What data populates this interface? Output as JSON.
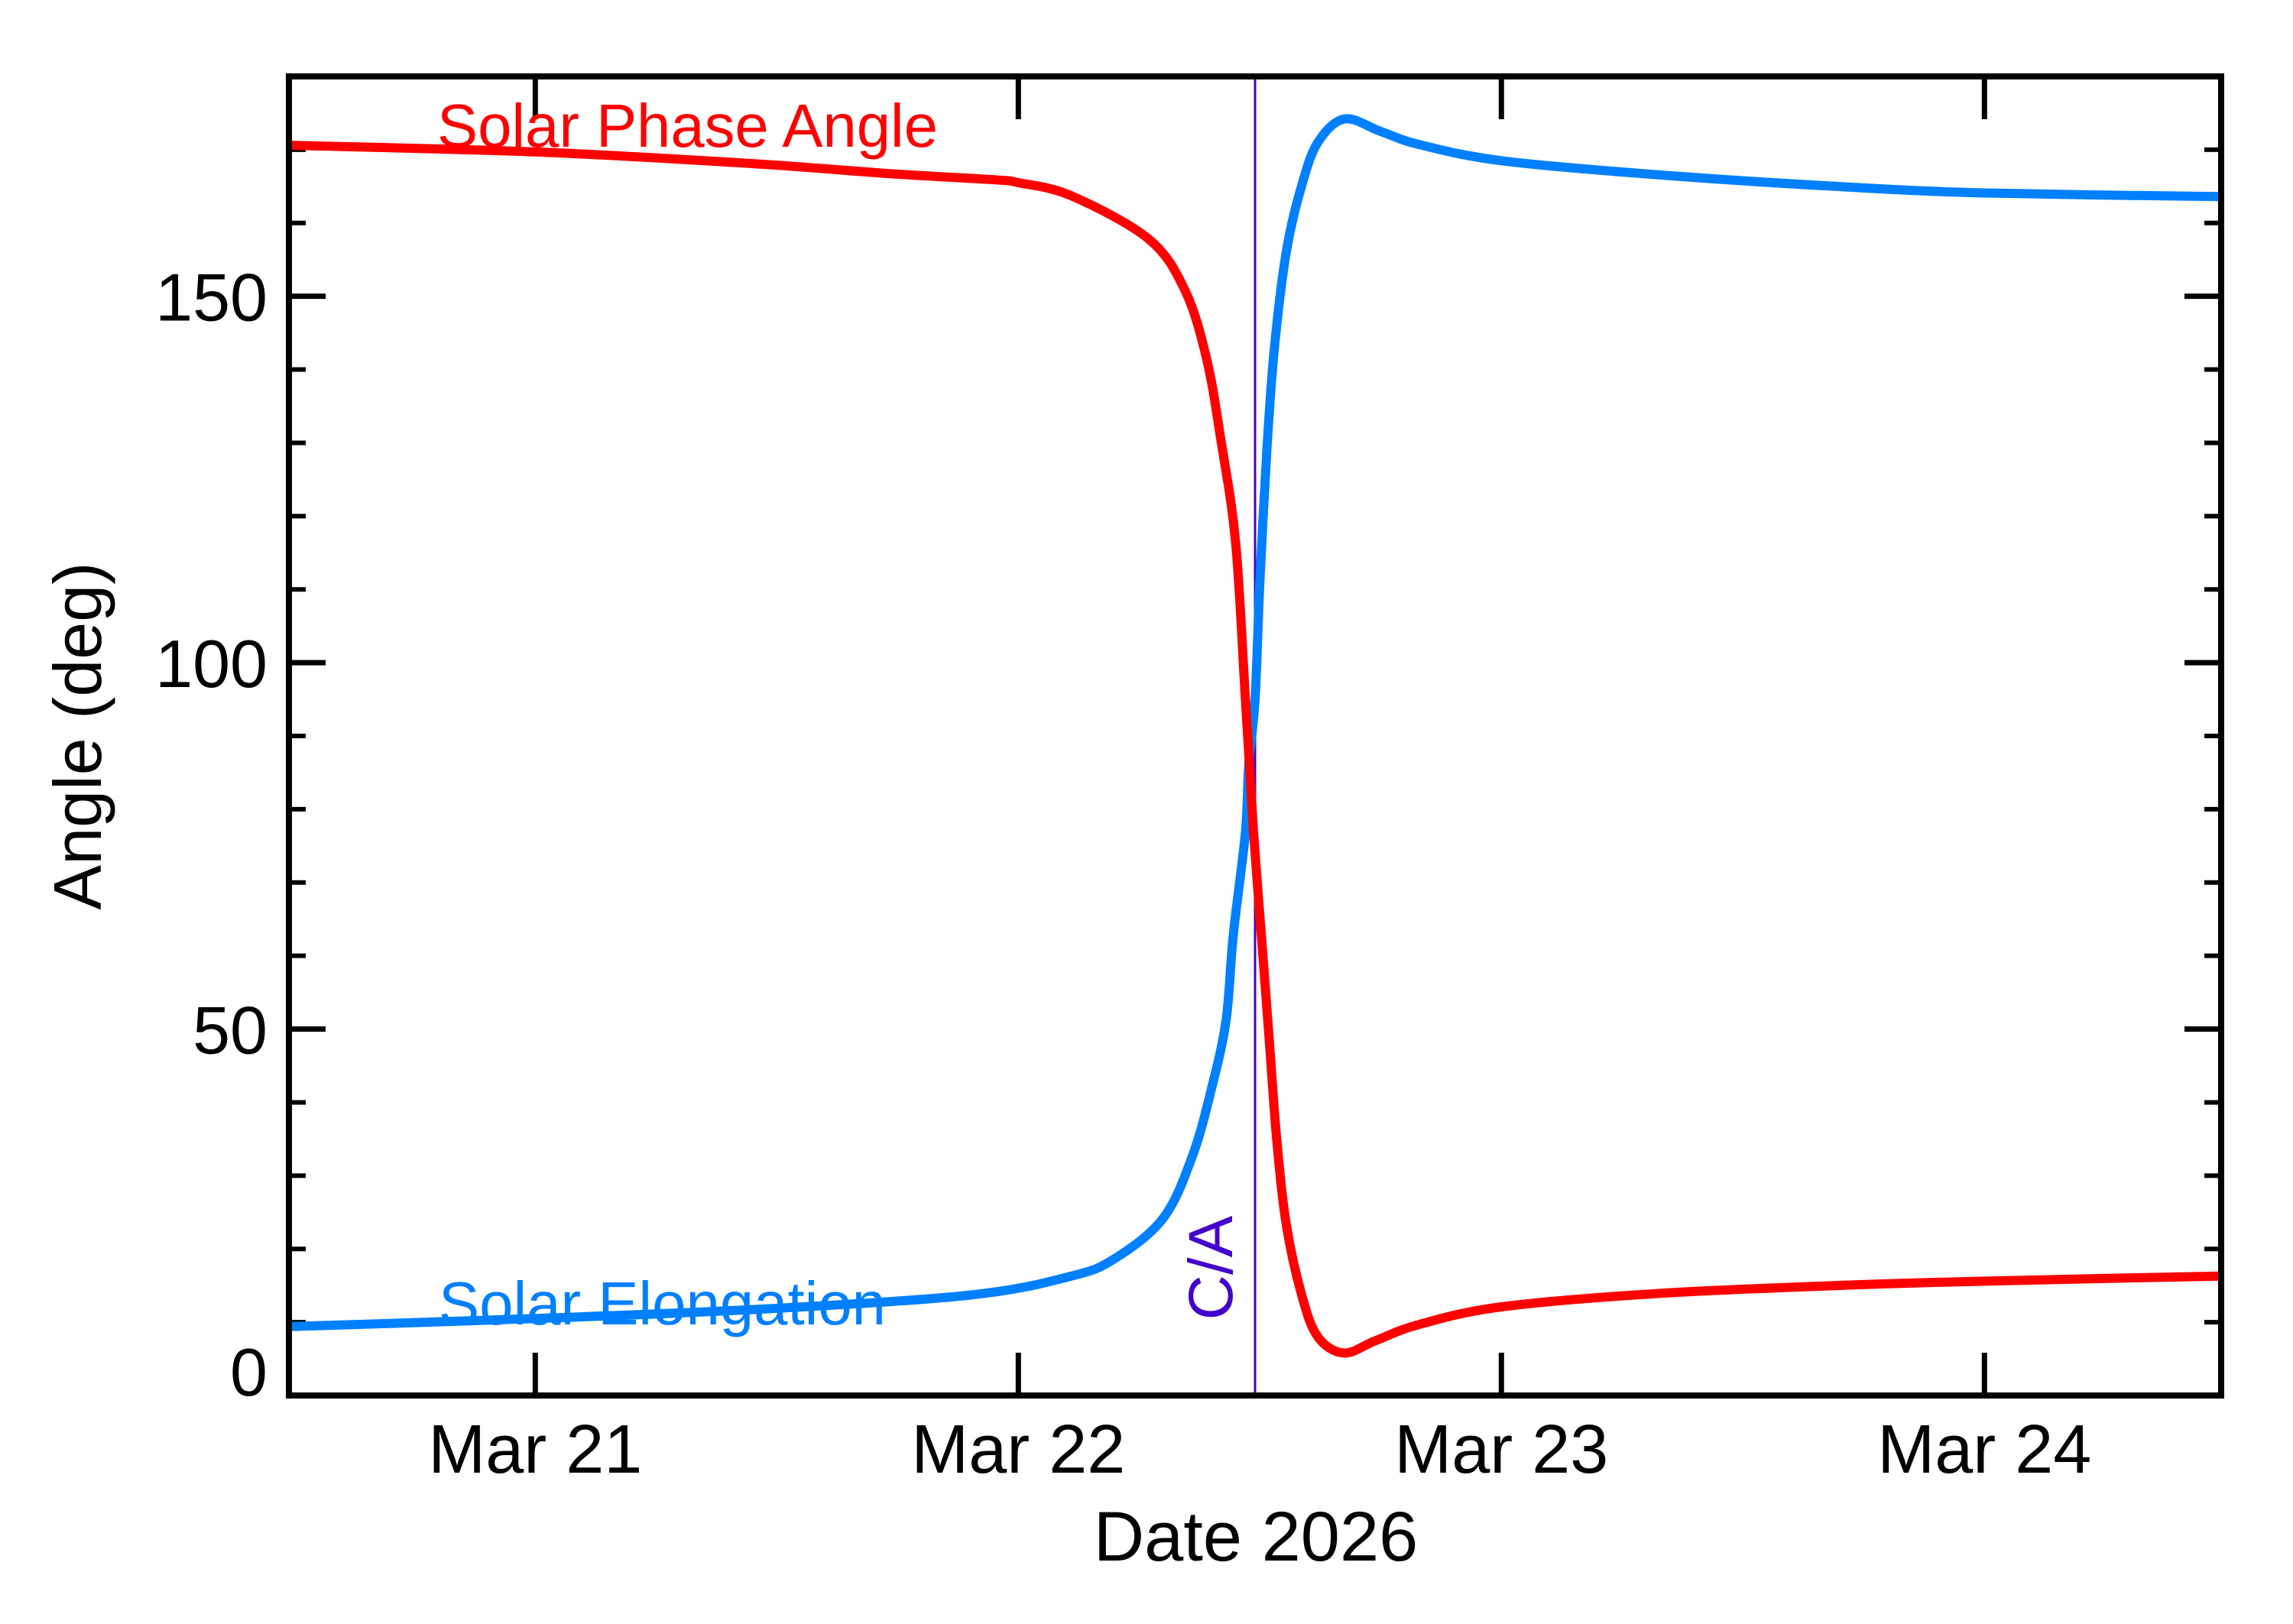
{
  "chart_data": {
    "type": "line",
    "title": "",
    "xlabel": "Date 2026",
    "ylabel": "Angle (deg)",
    "xlim": [
      20.49,
      24.49
    ],
    "ylim": [
      0,
      180
    ],
    "x_unit": "day of March 2026",
    "x_ticks": [
      {
        "value": 21,
        "label": "Mar 21"
      },
      {
        "value": 22,
        "label": "Mar 22"
      },
      {
        "value": 23,
        "label": "Mar 23"
      },
      {
        "value": 24,
        "label": "Mar 24"
      }
    ],
    "y_ticks": [
      {
        "value": 0,
        "label": "0"
      },
      {
        "value": 50,
        "label": "50"
      },
      {
        "value": 100,
        "label": "100"
      },
      {
        "value": 150,
        "label": "150"
      }
    ],
    "y_minor_step": 10,
    "grid": false,
    "legend_position": "inline labels",
    "annotations": [
      {
        "type": "vline",
        "x": 22.49,
        "label": "C/A",
        "color": "#4400CC"
      }
    ],
    "series": [
      {
        "name": "Solar Phase Angle",
        "color": "#FF0000",
        "x": [
          20.49,
          21.0,
          21.45,
          21.74,
          21.95,
          22.0,
          22.11,
          22.27,
          22.345,
          22.39,
          22.42,
          22.45,
          22.47,
          22.487,
          22.503,
          22.519,
          22.535,
          22.555,
          22.587,
          22.62,
          22.674,
          22.74,
          22.83,
          23.0,
          23.32,
          23.69,
          24.0,
          24.49
        ],
        "values": [
          170.6,
          169.7,
          168.1,
          166.7,
          165.9,
          165.5,
          163.7,
          157.8,
          150.8,
          141.4,
          130.1,
          116.3,
          95.0,
          76.8,
          62.9,
          48.9,
          34.9,
          23.2,
          13.6,
          8.0,
          5.8,
          7.5,
          9.7,
          12.1,
          13.9,
          15.0,
          15.6,
          16.3
        ]
      },
      {
        "name": "Solar Elongation",
        "color": "#0080FF",
        "x": [
          20.49,
          21.0,
          21.47,
          21.9,
          22.11,
          22.2,
          22.3,
          22.36,
          22.4,
          22.43,
          22.445,
          22.47,
          22.477,
          22.49,
          22.5,
          22.515,
          22.53,
          22.555,
          22.587,
          22.62,
          22.675,
          22.75,
          22.83,
          23.0,
          23.32,
          23.69,
          24.0,
          24.49
        ],
        "values": [
          9.4,
          10.5,
          11.8,
          13.7,
          16.3,
          18.7,
          24.2,
          32.6,
          41.9,
          51.2,
          62.9,
          76.8,
          86.1,
          95.0,
          111.0,
          129.6,
          142.9,
          156.2,
          165.2,
          171.0,
          174.2,
          172.5,
          170.7,
          168.5,
          166.6,
          165.0,
          164.1,
          163.6
        ]
      }
    ]
  },
  "labels": {
    "series_phase": "Solar Phase Angle",
    "series_elongation": "Solar Elongation",
    "ca": "C/A",
    "xlabel": "Date 2026",
    "ylabel": "Angle (deg)"
  },
  "colors": {
    "phase": "#FF0000",
    "elongation": "#0080FF",
    "ca_line": "#4400CC",
    "axis": "#000000",
    "background": "#FFFFFF"
  }
}
